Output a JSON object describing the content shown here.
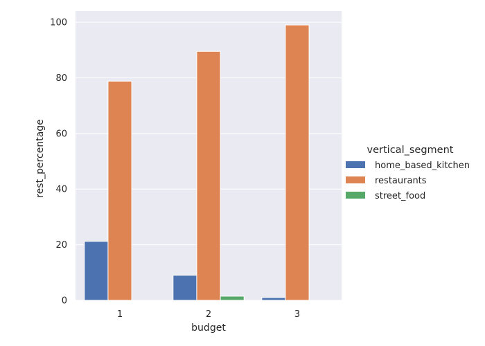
{
  "chart_data": {
    "type": "bar",
    "title": "",
    "xlabel": "budget",
    "ylabel": "rest_percentage",
    "categories": [
      "1",
      "2",
      "3"
    ],
    "series": [
      {
        "name": "home_based_kitchen",
        "values": [
          21.2,
          9.0,
          1.0
        ],
        "color": "#4c72b0"
      },
      {
        "name": "restaurants",
        "values": [
          78.8,
          89.5,
          99.0
        ],
        "color": "#dd8452"
      },
      {
        "name": "street_food",
        "values": [
          0,
          1.5,
          0
        ],
        "color": "#55a868"
      }
    ],
    "ylim": [
      0,
      104
    ],
    "yticks": [
      "0",
      "20",
      "40",
      "60",
      "80",
      "100"
    ],
    "grid": true,
    "background_color": "#eaeaf2",
    "legend": {
      "title": "vertical_segment",
      "placement": "right"
    }
  }
}
